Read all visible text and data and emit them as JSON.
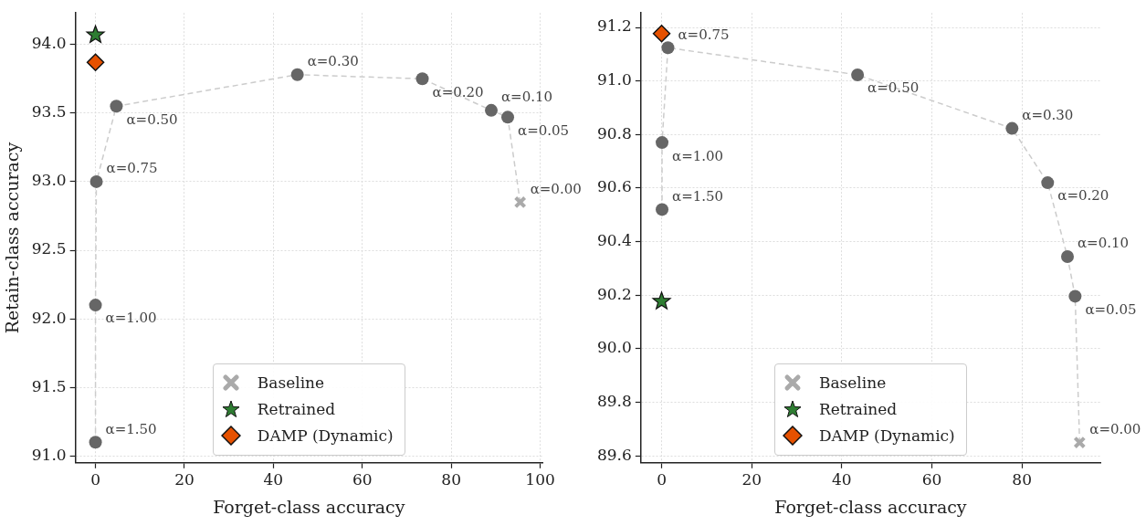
{
  "chart_data": [
    {
      "type": "scatter",
      "xlabel": "Forget-class accuracy",
      "ylabel": "Retain-class accuracy",
      "xlim": [
        -4.5,
        100.5
      ],
      "ylim": [
        90.95,
        94.23
      ],
      "xticks": [
        0,
        20,
        40,
        60,
        80,
        100
      ],
      "yticks": [
        {
          "value": 91,
          "label": "91.0"
        },
        91.5,
        {
          "value": 92,
          "label": "92.0"
        },
        92.5,
        {
          "value": 93,
          "label": "93.0"
        },
        93.5,
        {
          "value": 94,
          "label": "94.0"
        }
      ],
      "grid": true,
      "legend": "bottom",
      "series": [
        {
          "type": "line",
          "marker": "none",
          "line_style": "dashed",
          "color": "#cccccc",
          "x": [
            0,
            0,
            0.2,
            4.7,
            45.4,
            73.5,
            89.0,
            92.7,
            95.5
          ],
          "values": [
            91.1,
            92.1,
            93.0,
            93.55,
            93.78,
            93.75,
            93.52,
            93.47,
            92.85
          ]
        },
        {
          "type": "scatter",
          "marker": "circle",
          "color": "#666666",
          "x": [
            0,
            0,
            0.2,
            4.7,
            45.4,
            73.5,
            89.0,
            92.7
          ],
          "values": [
            91.1,
            92.1,
            93.0,
            93.55,
            93.78,
            93.75,
            93.52,
            93.47
          ]
        },
        {
          "type": "scatter",
          "name": "Baseline",
          "marker": "cross",
          "color": "#aaaaaa",
          "x": [
            95.5
          ],
          "values": [
            92.85
          ]
        },
        {
          "type": "scatter",
          "name": "Retrained",
          "marker": "star",
          "color": "#2e7d32",
          "x": [
            0
          ],
          "values": [
            94.07
          ]
        },
        {
          "type": "scatter",
          "name": "DAMP (Dynamic)",
          "marker": "diamond",
          "color": "#e65100",
          "x": [
            0
          ],
          "values": [
            93.87
          ]
        }
      ],
      "annotations": [
        {
          "text": "α=1.50",
          "x": 0,
          "y": 91.1
        },
        {
          "text": "α=1.00",
          "x": 0,
          "y": 92.1
        },
        {
          "text": "α=0.75",
          "x": 0.2,
          "y": 93.0
        },
        {
          "text": "α=0.50",
          "x": 4.7,
          "y": 93.55
        },
        {
          "text": "α=0.30",
          "x": 45.4,
          "y": 93.78
        },
        {
          "text": "α=0.20",
          "x": 73.5,
          "y": 93.75
        },
        {
          "text": "α=0.10",
          "x": 89.0,
          "y": 93.52
        },
        {
          "text": "α=0.05",
          "x": 92.7,
          "y": 93.47
        },
        {
          "text": "α=0.00",
          "x": 95.5,
          "y": 92.85
        }
      ]
    },
    {
      "type": "scatter",
      "xlabel": "Forget-class accuracy",
      "xlim": [
        -4.6,
        97.4
      ],
      "ylim": [
        89.574,
        91.254
      ],
      "xticks": [
        0,
        20,
        40,
        60,
        80
      ],
      "yticks": [
        89.6,
        89.8,
        {
          "value": 90,
          "label": "90.0"
        },
        90.2,
        90.4,
        90.6,
        90.8,
        {
          "value": 91,
          "label": "91.0"
        },
        91.2
      ],
      "grid": true,
      "legend": "bottom",
      "series": [
        {
          "type": "line",
          "marker": "none",
          "line_style": "dashed",
          "color": "#cccccc",
          "x": [
            0.1,
            0.1,
            1.4,
            43.5,
            77.8,
            85.7,
            90.1,
            91.8,
            92.8
          ],
          "values": [
            90.52,
            90.77,
            91.124,
            91.023,
            90.823,
            90.62,
            90.344,
            90.196,
            89.65
          ]
        },
        {
          "type": "scatter",
          "marker": "circle",
          "color": "#666666",
          "x": [
            0.1,
            0.1,
            1.4,
            43.5,
            77.8,
            85.7,
            90.1,
            91.8
          ],
          "values": [
            90.52,
            90.77,
            91.124,
            91.023,
            90.823,
            90.62,
            90.344,
            90.196
          ]
        },
        {
          "type": "scatter",
          "name": "Baseline",
          "marker": "cross",
          "color": "#aaaaaa",
          "x": [
            92.8
          ],
          "values": [
            89.65
          ]
        },
        {
          "type": "scatter",
          "name": "Retrained",
          "marker": "star",
          "color": "#2e7d32",
          "x": [
            0
          ],
          "values": [
            90.177
          ]
        },
        {
          "type": "scatter",
          "name": "DAMP (Dynamic)",
          "marker": "diamond",
          "color": "#e65100",
          "x": [
            0
          ],
          "values": [
            91.177
          ]
        }
      ],
      "annotations": [
        {
          "text": "α=1.50",
          "x": 0.1,
          "y": 90.52
        },
        {
          "text": "α=1.00",
          "x": 0.1,
          "y": 90.77
        },
        {
          "text": "α=0.75",
          "x": 1.4,
          "y": 91.124
        },
        {
          "text": "α=0.50",
          "x": 43.5,
          "y": 91.023
        },
        {
          "text": "α=0.30",
          "x": 77.8,
          "y": 90.823
        },
        {
          "text": "α=0.20",
          "x": 85.7,
          "y": 90.62
        },
        {
          "text": "α=0.10",
          "x": 90.1,
          "y": 90.344
        },
        {
          "text": "α=0.05",
          "x": 91.8,
          "y": 90.196
        },
        {
          "text": "α=0.00",
          "x": 92.8,
          "y": 89.65
        }
      ]
    }
  ]
}
